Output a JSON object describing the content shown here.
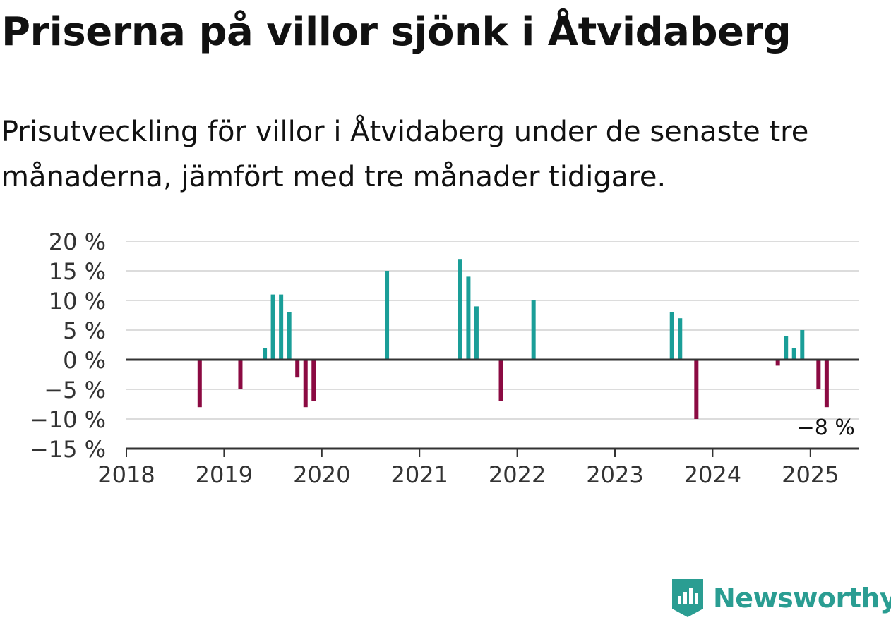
{
  "title": "Priserna på villor sjönk i Åtvidaberg",
  "subtitle": "Prisutveckling för villor i Åtvidaberg under de senaste tre månaderna, jämfört med tre månader tidigare.",
  "brand": {
    "name": "Newsworthy",
    "icon": "newsworthy-logo-icon"
  },
  "colors": {
    "positive": "#1a9e98",
    "negative": "#8b0a42",
    "grid": "#dcdcdc",
    "axis": "#333333"
  },
  "chart_data": {
    "type": "bar",
    "ylim": [
      -15,
      20
    ],
    "yticks": [
      20,
      15,
      10,
      5,
      0,
      -5,
      -10,
      -15
    ],
    "ytick_labels": [
      "20 %",
      "15 %",
      "10 %",
      "5 %",
      "0 %",
      "−5 %",
      "−10 %",
      "−15 %"
    ],
    "xlim": [
      "2018-01",
      "2025-07"
    ],
    "xticks": [
      "2018",
      "2019",
      "2020",
      "2021",
      "2022",
      "2023",
      "2024",
      "2025"
    ],
    "grid": true,
    "unit": "%",
    "values": [
      {
        "x": "2018-10",
        "y": -8
      },
      {
        "x": "2019-03",
        "y": -5
      },
      {
        "x": "2019-06",
        "y": 2
      },
      {
        "x": "2019-07",
        "y": 11
      },
      {
        "x": "2019-08",
        "y": 11
      },
      {
        "x": "2019-09",
        "y": 8
      },
      {
        "x": "2019-10",
        "y": -3
      },
      {
        "x": "2019-11",
        "y": -8
      },
      {
        "x": "2019-12",
        "y": -7
      },
      {
        "x": "2020-09",
        "y": 15
      },
      {
        "x": "2021-06",
        "y": 17
      },
      {
        "x": "2021-07",
        "y": 14
      },
      {
        "x": "2021-08",
        "y": 9
      },
      {
        "x": "2021-11",
        "y": -7
      },
      {
        "x": "2022-03",
        "y": 10
      },
      {
        "x": "2023-08",
        "y": 8
      },
      {
        "x": "2023-09",
        "y": 7
      },
      {
        "x": "2023-11",
        "y": -10
      },
      {
        "x": "2024-09",
        "y": -1
      },
      {
        "x": "2024-10",
        "y": 4
      },
      {
        "x": "2024-11",
        "y": 2
      },
      {
        "x": "2024-12",
        "y": 5
      },
      {
        "x": "2025-02",
        "y": -5
      },
      {
        "x": "2025-03",
        "y": -8
      }
    ],
    "annotation": {
      "x": "2025-03",
      "text": "−8 %"
    }
  }
}
